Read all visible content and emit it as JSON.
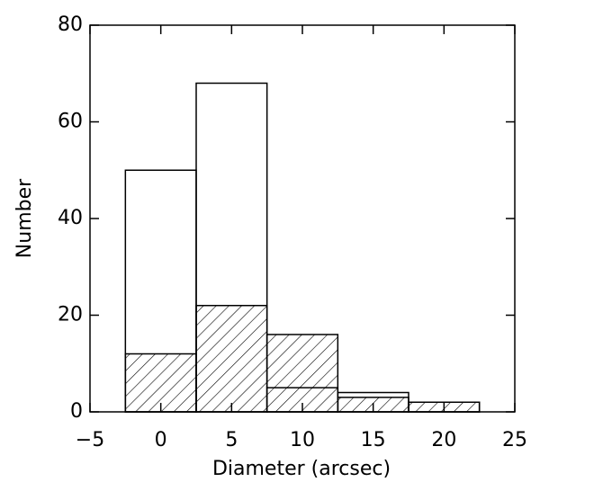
{
  "chart_data": {
    "type": "histogram",
    "xlabel": "Diameter (arcsec)",
    "ylabel": "Number",
    "bins": [
      -2.5,
      2.5,
      7.5,
      12.5,
      17.5,
      22.5
    ],
    "series": [
      {
        "color": "#000000",
        "hatched": false,
        "values": [
          50,
          68,
          5,
          4,
          2
        ]
      },
      {
        "color": "#000000",
        "hatched": true,
        "values": [
          12,
          22,
          16,
          3,
          2
        ]
      }
    ],
    "xlim": [
      -5,
      25
    ],
    "xticks": [
      {
        "value": -5,
        "label": "−5"
      },
      0,
      5,
      10,
      15,
      20,
      25
    ],
    "ylim": [
      0,
      80
    ],
    "yticks": [
      0,
      20,
      40,
      60,
      80
    ]
  }
}
